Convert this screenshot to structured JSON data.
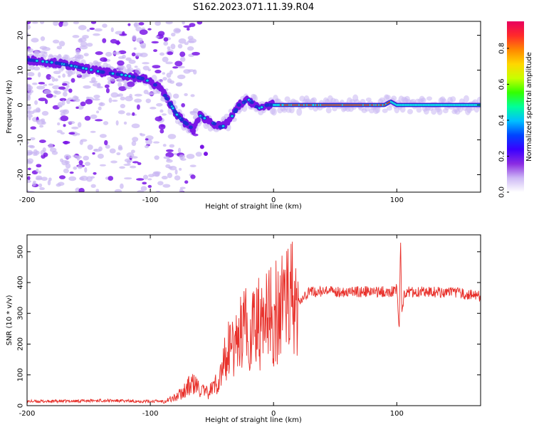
{
  "title": "S162.2023.071.11.39.R04",
  "colors": {
    "snr_line": "#e8302a",
    "spec_low": "#c9b6f2",
    "spec_mid": "#7a16e6",
    "spec_high": "#1d2fd0",
    "spec_core": "#11d7e6",
    "spec_peak": "#e32222"
  },
  "chart_data": [
    {
      "type": "heatmap",
      "xlabel": "Height of straight line (km)",
      "ylabel": "Frequency (Hz)",
      "xlim": [
        -200,
        168
      ],
      "ylim": [
        -25,
        24
      ],
      "xticks": [
        -200,
        -100,
        0,
        100
      ],
      "yticks": [
        20,
        10,
        0,
        -10,
        -20
      ],
      "colorbar": {
        "label": "Normalized spectral amplitude",
        "range": [
          0,
          0.95
        ],
        "ticks": [
          "0.0",
          "0.2",
          "0.4",
          "0.6",
          "0.8"
        ],
        "stops": [
          "#ffffff",
          "#cdb8f5",
          "#8a2be2",
          "#3a00ff",
          "#0044ff",
          "#00bfff",
          "#00ff9a",
          "#33ff00",
          "#c8ff00",
          "#ffd700",
          "#ff8800",
          "#ff2a2a",
          "#e8005f"
        ]
      },
      "ridge": [
        {
          "x": -200,
          "y": 13
        },
        {
          "x": -175,
          "y": 12
        },
        {
          "x": -160,
          "y": 11
        },
        {
          "x": -140,
          "y": 9.5
        },
        {
          "x": -120,
          "y": 8.5
        },
        {
          "x": -105,
          "y": 7.5
        },
        {
          "x": -92,
          "y": 5
        },
        {
          "x": -85,
          "y": 1
        },
        {
          "x": -78,
          "y": -3
        },
        {
          "x": -72,
          "y": -5
        },
        {
          "x": -65,
          "y": -7
        },
        {
          "x": -60,
          "y": -3
        },
        {
          "x": -50,
          "y": -5
        },
        {
          "x": -42,
          "y": -6.5
        },
        {
          "x": -35,
          "y": -4
        },
        {
          "x": -28,
          "y": 0
        },
        {
          "x": -20,
          "y": 1.5
        },
        {
          "x": -12,
          "y": -1
        },
        {
          "x": -5,
          "y": 0
        },
        {
          "x": 10,
          "y": 0
        },
        {
          "x": 50,
          "y": 0
        },
        {
          "x": 90,
          "y": 0
        },
        {
          "x": 95,
          "y": 1
        },
        {
          "x": 100,
          "y": 0
        },
        {
          "x": 168,
          "y": 0
        }
      ]
    },
    {
      "type": "line",
      "xlabel": "Height of straight line (km)",
      "ylabel": "SNR (10 * v/v)",
      "xlim": [
        -200,
        168
      ],
      "ylim": [
        0,
        555
      ],
      "xticks": [
        -200,
        -100,
        0,
        100
      ],
      "yticks": [
        0,
        100,
        200,
        300,
        400,
        500
      ],
      "series": [
        {
          "x": [
            -200,
            -180,
            -160,
            -140,
            -120,
            -100,
            -90,
            -80,
            -75,
            -70,
            -65,
            -60,
            -55,
            -50,
            -45,
            -40,
            -35,
            -30,
            -25,
            -20,
            -15,
            -10,
            -5,
            0,
            5,
            10,
            15,
            20,
            25,
            30,
            40,
            60,
            80,
            95,
            100,
            102,
            103,
            104,
            106,
            110,
            130,
            150,
            168
          ],
          "y": [
            14,
            14,
            15,
            17,
            15,
            14,
            15,
            25,
            40,
            60,
            70,
            55,
            40,
            55,
            80,
            130,
            180,
            200,
            220,
            240,
            250,
            250,
            260,
            280,
            290,
            300,
            320,
            340,
            360,
            370,
            370,
            370,
            370,
            370,
            380,
            240,
            555,
            300,
            360,
            370,
            370,
            365,
            355
          ]
        }
      ]
    }
  ]
}
